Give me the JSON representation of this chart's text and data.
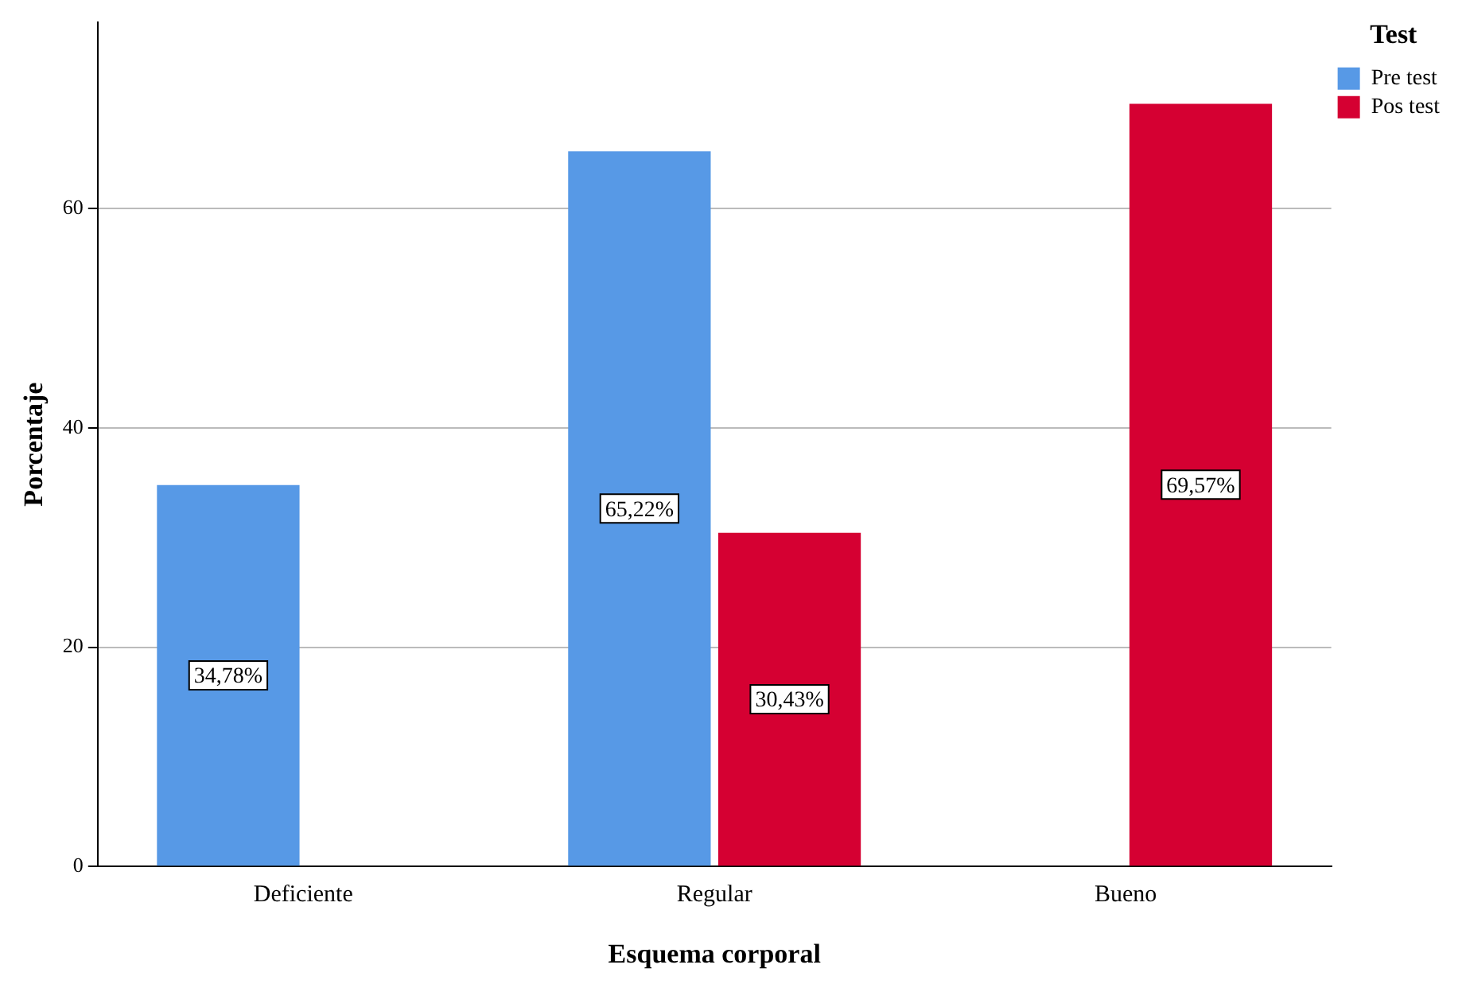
{
  "chart_data": {
    "type": "bar",
    "xlabel": "Esquema corporal",
    "ylabel": "Porcentaje",
    "legend_title": "Test",
    "legend": "top right",
    "grid": "y",
    "categories": [
      "Deficiente",
      "Regular",
      "Bueno"
    ],
    "ylim": [
      0,
      77
    ],
    "yticks": [
      0,
      20,
      40,
      60
    ],
    "series": [
      {
        "name": "Pre test",
        "color": "#5799e6",
        "values": [
          34.78,
          65.22,
          null
        ],
        "value_labels": [
          "34,78%",
          "65,22%",
          null
        ]
      },
      {
        "name": "Pos test",
        "color": "#d50032",
        "values": [
          null,
          30.43,
          69.57
        ],
        "value_labels": [
          null,
          "30,43%",
          "69,57%"
        ]
      }
    ]
  }
}
